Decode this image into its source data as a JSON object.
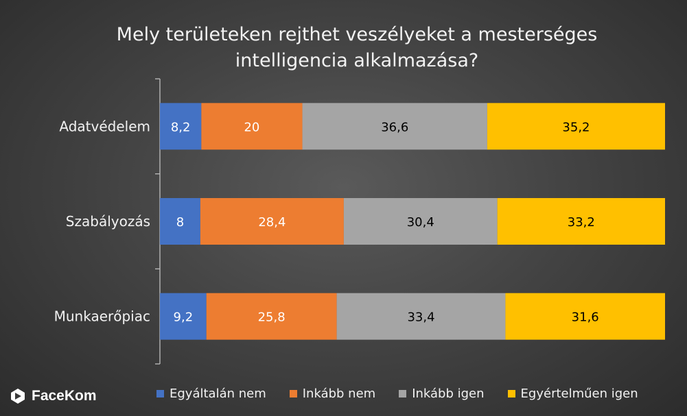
{
  "chart_data": {
    "type": "bar",
    "orientation": "horizontal",
    "stacked": "percent",
    "title": "Mely területeken rejthet veszélyeket a mesterséges intelligencia alkalmazása?",
    "title_lines": [
      "Mely területeken rejthet veszélyeket a mesterséges",
      "intelligencia alkalmazása?"
    ],
    "categories": [
      "Adatvédelem",
      "Szabályozás",
      "Munkaerőpiac"
    ],
    "series": [
      {
        "name": "Egyáltalán nem",
        "values": [
          8.2,
          8,
          9.2
        ],
        "labels": [
          "8,2",
          "8",
          "9,2"
        ],
        "color": "#4472C4",
        "label_color": "#ffffff"
      },
      {
        "name": "Inkább nem",
        "values": [
          20,
          28.4,
          25.8
        ],
        "labels": [
          "20",
          "28,4",
          "25,8"
        ],
        "color": "#ED7D31",
        "label_color": "#ffffff"
      },
      {
        "name": "Inkább igen",
        "values": [
          36.6,
          30.4,
          33.4
        ],
        "labels": [
          "36,6",
          "30,4",
          "33,4"
        ],
        "color": "#A5A5A5",
        "label_color": "#000000"
      },
      {
        "name": "Egyértelműen igen",
        "values": [
          35.2,
          33.2,
          31.6
        ],
        "labels": [
          "35,2",
          "33,2",
          "31,6"
        ],
        "color": "#FFC000",
        "label_color": "#000000"
      }
    ],
    "xlim": [
      0,
      100
    ],
    "grid": false,
    "legend_position": "bottom"
  },
  "brand": {
    "name": "FaceKom",
    "icon": "facekom-logo-icon"
  },
  "colors": {
    "background": "#444444",
    "text": "#f2f2f2",
    "axis": "#bfbfbf"
  }
}
